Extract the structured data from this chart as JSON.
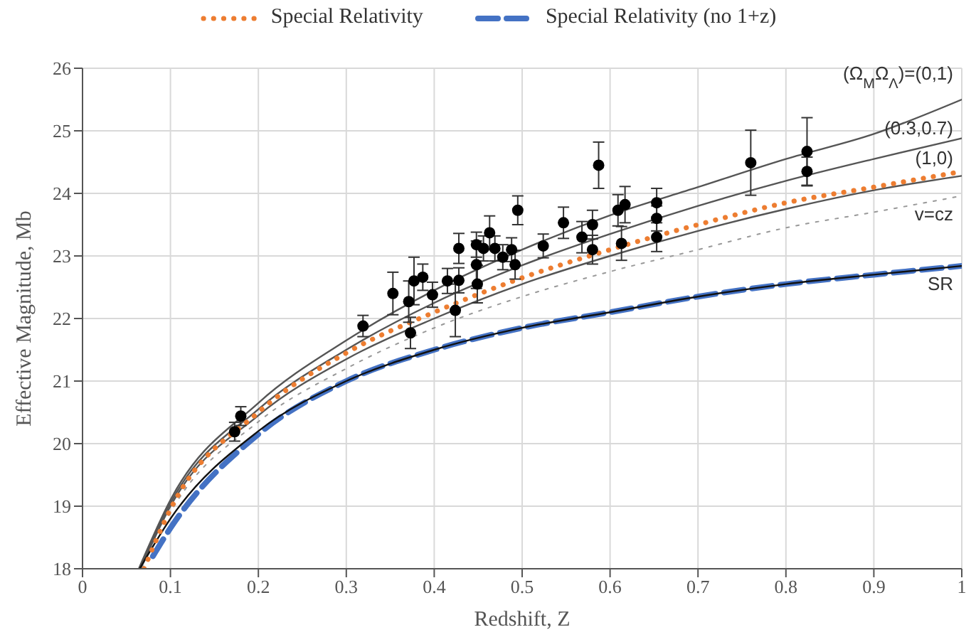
{
  "chart_data": {
    "type": "line",
    "xlabel": "Redshift, Z",
    "ylabel": "Effective Magnitude, Mb",
    "xlim": [
      0,
      1
    ],
    "xticks": [
      0,
      0.1,
      0.2,
      0.3,
      0.4,
      0.5,
      0.6,
      0.7,
      0.8,
      0.9,
      1
    ],
    "ylim": [
      18,
      26
    ],
    "yticks": [
      18,
      19,
      20,
      21,
      22,
      23,
      24,
      25,
      26
    ],
    "grid": true,
    "legend": "top",
    "marker": "none",
    "series": [
      {
        "color": "#555555",
        "line_style": "solid",
        "x": [
          0.064,
          0.1,
          0.2,
          0.3,
          0.4,
          0.5,
          0.6,
          0.7,
          0.8,
          0.9,
          1
        ],
        "values": [
          18,
          19.1,
          20.65,
          21.65,
          22.45,
          23.1,
          23.65,
          24.1,
          24.55,
          24.95,
          25.5
        ]
      },
      {
        "color": "#555555",
        "line_style": "solid",
        "x": [
          0.065,
          0.1,
          0.2,
          0.3,
          0.4,
          0.5,
          0.6,
          0.7,
          0.8,
          0.9,
          1
        ],
        "values": [
          18,
          19.05,
          20.55,
          21.5,
          22.25,
          22.85,
          23.35,
          23.8,
          24.2,
          24.55,
          24.88
        ]
      },
      {
        "color": "#555555",
        "line_style": "solid",
        "x": [
          0.066,
          0.1,
          0.2,
          0.3,
          0.4,
          0.5,
          0.6,
          0.7,
          0.8,
          0.9,
          1
        ],
        "values": [
          18,
          19,
          20.45,
          21.35,
          22,
          22.55,
          23,
          23.4,
          23.75,
          24.05,
          24.28
        ]
      },
      {
        "color": "#999999",
        "line_style": "dotted",
        "x": [
          0.068,
          0.1,
          0.2,
          0.3,
          0.4,
          0.5,
          0.6,
          0.7,
          0.8,
          0.9,
          1
        ],
        "values": [
          18,
          18.9,
          20.35,
          21.2,
          21.85,
          22.35,
          22.75,
          23.1,
          23.45,
          23.7,
          23.96
        ]
      },
      {
        "color": "#111111",
        "line_style": "solid",
        "x": [
          0.065,
          0.1,
          0.2,
          0.3,
          0.4,
          0.5,
          0.6,
          0.7,
          0.8,
          0.9,
          1
        ],
        "values": [
          18,
          18.8,
          20.2,
          21,
          21.5,
          21.85,
          22.1,
          22.35,
          22.55,
          22.7,
          22.84
        ]
      },
      {
        "name": "Special Relativity",
        "color": "#ed7d31",
        "line_style": "dotted",
        "x": [
          0.07,
          0.1,
          0.2,
          0.3,
          0.4,
          0.5,
          0.6,
          0.7,
          0.8,
          0.9,
          1
        ],
        "values": [
          18,
          18.95,
          20.5,
          21.45,
          22.1,
          22.65,
          23.1,
          23.5,
          23.85,
          24.1,
          24.35
        ]
      },
      {
        "name": "Special Relativity (no 1+z)",
        "color": "#4472c4",
        "line_style": "dashed",
        "x": [
          0.08,
          0.1,
          0.2,
          0.3,
          0.4,
          0.5,
          0.6,
          0.7,
          0.8,
          0.9,
          1
        ],
        "values": [
          18.2,
          18.65,
          20.15,
          21,
          21.5,
          21.85,
          22.1,
          22.35,
          22.55,
          22.7,
          22.84
        ]
      },
      {
        "type": "scatter",
        "color": "#000000",
        "marker": "circle",
        "x": [
          0.173,
          0.18,
          0.319,
          0.353,
          0.371,
          0.373,
          0.377,
          0.387,
          0.398,
          0.415,
          0.424,
          0.428,
          0.428,
          0.448,
          0.448,
          0.449,
          0.456,
          0.463,
          0.469,
          0.478,
          0.488,
          0.492,
          0.495,
          0.524,
          0.547,
          0.568,
          0.58,
          0.58,
          0.587,
          0.609,
          0.613,
          0.617,
          0.653,
          0.653,
          0.653,
          0.76,
          0.824,
          0.824
        ],
        "values": [
          20.19,
          20.44,
          21.88,
          22.4,
          22.27,
          21.77,
          22.6,
          22.66,
          22.38,
          22.6,
          22.13,
          23.12,
          22.61,
          23.18,
          22.86,
          22.55,
          23.12,
          23.37,
          23.12,
          22.98,
          23.1,
          22.86,
          23.73,
          23.16,
          23.53,
          23.3,
          23.5,
          23.1,
          24.45,
          23.73,
          23.2,
          23.82,
          23.85,
          23.6,
          23.3,
          24.49,
          24.67,
          24.35
        ],
        "errors": [
          0.15,
          0.15,
          0.17,
          0.34,
          0.33,
          0.25,
          0.38,
          0.21,
          0.2,
          0.2,
          0.42,
          0.24,
          0.2,
          0.2,
          0.38,
          0.3,
          0.2,
          0.27,
          0.2,
          0.2,
          0.19,
          0.23,
          0.23,
          0.19,
          0.25,
          0.25,
          0.23,
          0.23,
          0.37,
          0.25,
          0.27,
          0.29,
          0.23,
          0.2,
          0.23,
          0.52,
          0.54,
          0.23
        ]
      }
    ],
    "annotations": [
      "(Ω$_{M}$Ω$_{Λ}$)=(0,1)",
      "(0.3,0.7)",
      "(1,0)",
      "v=cz",
      "SR"
    ]
  }
}
